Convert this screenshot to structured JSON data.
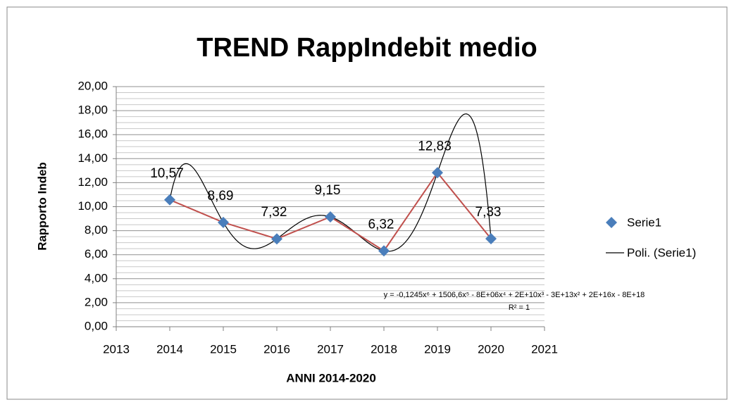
{
  "chart_data": {
    "type": "scatter",
    "title": "TREND RappIndebit medio",
    "x_label": "ANNI 2014-2020",
    "y_label": "Rapporto Indeb",
    "series": [
      {
        "name": "Serie1",
        "color": "#4a7ebb",
        "line_color": "#c0504d",
        "x": [
          2014,
          2015,
          2016,
          2017,
          2018,
          2019,
          2020
        ],
        "values": [
          10.57,
          8.69,
          7.32,
          9.15,
          6.32,
          12.83,
          7.33
        ],
        "value_labels": [
          "10,57",
          "8,69",
          "7,32",
          "9,15",
          "6,32",
          "12,83",
          "7,33"
        ]
      }
    ],
    "trendline": {
      "name": "Poli. (Serie1)",
      "type": "polynomial",
      "order": 6,
      "color": "#000000",
      "equation": "y = -0,1245x⁶ + 1506,6x⁵ - 8E+06x⁴ + 2E+10x³ - 3E+13x² + 2E+16x - 8E+18",
      "r_squared": "R² = 1"
    },
    "xlim": [
      2013,
      2021
    ],
    "xticks": [
      2013,
      2014,
      2015,
      2016,
      2017,
      2018,
      2019,
      2020,
      2021
    ],
    "ylim": [
      0,
      20
    ],
    "yticks": [
      {
        "value": 0,
        "label": "0,00"
      },
      {
        "value": 2,
        "label": "2,00"
      },
      {
        "value": 4,
        "label": "4,00"
      },
      {
        "value": 6,
        "label": "6,00"
      },
      {
        "value": 8,
        "label": "8,00"
      },
      {
        "value": 10,
        "label": "10,00"
      },
      {
        "value": 12,
        "label": "12,00"
      },
      {
        "value": 14,
        "label": "14,00"
      },
      {
        "value": 16,
        "label": "16,00"
      },
      {
        "value": 18,
        "label": "18,00"
      },
      {
        "value": 20,
        "label": "20,00"
      }
    ],
    "grid": true,
    "legend": "right"
  }
}
